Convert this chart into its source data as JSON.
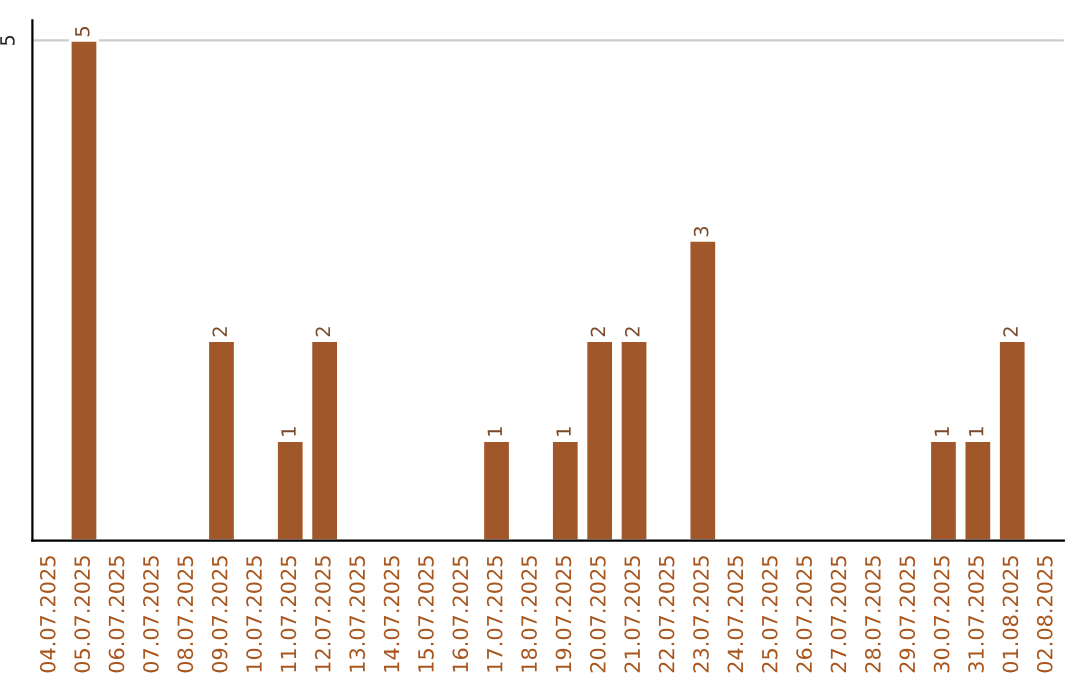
{
  "chart_data": {
    "type": "bar",
    "categories": [
      "04.07.2025",
      "05.07.2025",
      "06.07.2025",
      "07.07.2025",
      "08.07.2025",
      "09.07.2025",
      "10.07.2025",
      "11.07.2025",
      "12.07.2025",
      "13.07.2025",
      "14.07.2025",
      "15.07.2025",
      "16.07.2025",
      "17.07.2025",
      "18.07.2025",
      "19.07.2025",
      "20.07.2025",
      "21.07.2025",
      "22.07.2025",
      "23.07.2025",
      "24.07.2025",
      "25.07.2025",
      "26.07.2025",
      "27.07.2025",
      "28.07.2025",
      "29.07.2025",
      "30.07.2025",
      "31.07.2025",
      "01.08.2025",
      "02.08.2025"
    ],
    "values": [
      null,
      5,
      null,
      null,
      null,
      2,
      null,
      1,
      2,
      null,
      null,
      null,
      null,
      1,
      null,
      1,
      2,
      2,
      null,
      3,
      null,
      null,
      null,
      null,
      null,
      null,
      1,
      1,
      2,
      null
    ],
    "color": "#a0572a",
    "ylim": [
      0,
      5.2
    ],
    "yticks": [
      5
    ],
    "grid": "y",
    "data_labels": true
  }
}
